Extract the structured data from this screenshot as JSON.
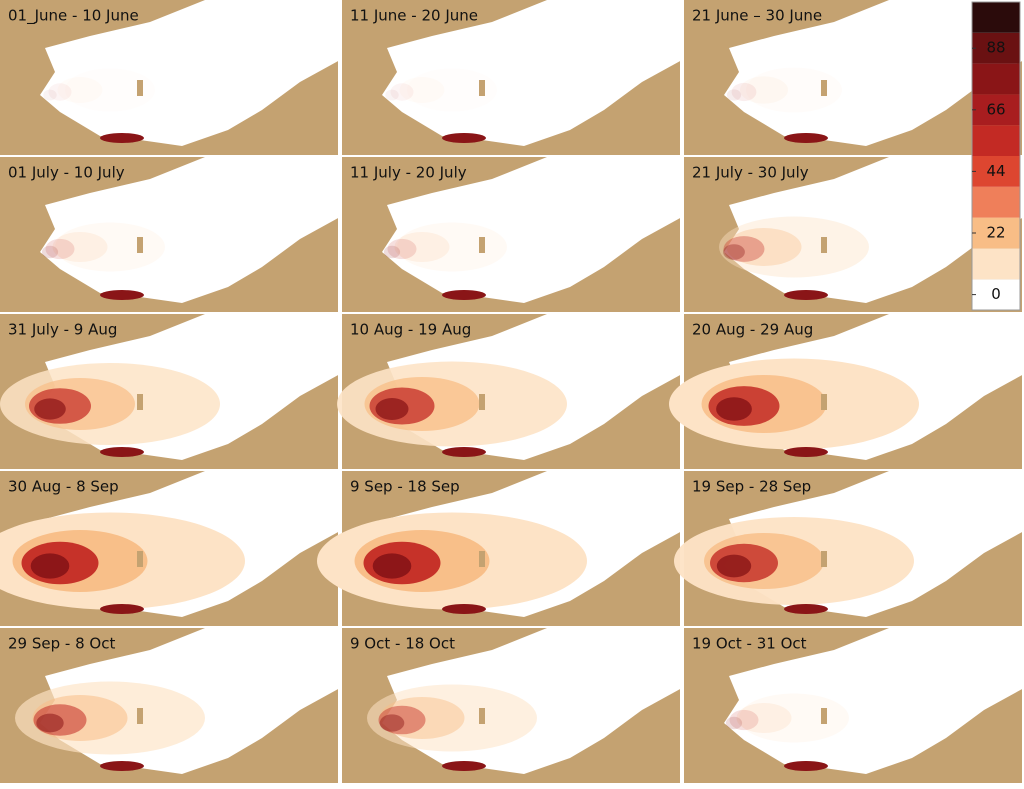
{
  "panels": [
    {
      "title": "01_June - 10 June"
    },
    {
      "title": "11 June - 20 June"
    },
    {
      "title": "21 June – 30 June"
    },
    {
      "title": "01 July - 10 July"
    },
    {
      "title": "11 July - 20 July"
    },
    {
      "title": "21 July - 30 July"
    },
    {
      "title": "31 July - 9 Aug"
    },
    {
      "title": "10 Aug - 19 Aug"
    },
    {
      "title": "20 Aug - 29 Aug"
    },
    {
      "title": "30 Aug - 8 Sep"
    },
    {
      "title": "9 Sep - 18 Sep"
    },
    {
      "title": "19 Sep - 28 Sep"
    },
    {
      "title": "29 Sep - 8 Oct"
    },
    {
      "title": "9 Oct - 18 Oct"
    },
    {
      "title": "19 Oct - 31 Oct"
    }
  ],
  "colorbar": {
    "ticks": [
      0,
      22,
      44,
      66,
      88
    ],
    "colors": [
      "#ffffff",
      "#fde3c6",
      "#f8bd86",
      "#ef7f5a",
      "#dd4630",
      "#c32a24",
      "#a81d1f",
      "#8a1517",
      "#6a1112",
      "#2b0b0b"
    ]
  }
}
